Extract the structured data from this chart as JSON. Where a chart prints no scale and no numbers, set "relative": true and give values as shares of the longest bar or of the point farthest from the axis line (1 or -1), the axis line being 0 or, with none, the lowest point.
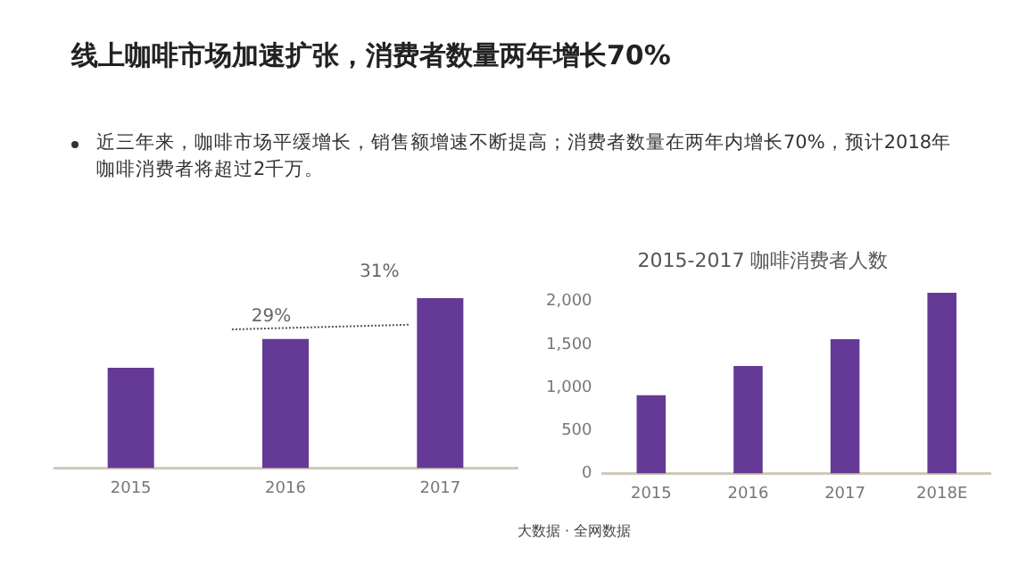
{
  "chart_data": [
    {
      "type": "other",
      "title": "线上咖啡市场加速扩张，消费者数量两年增长70%",
      "annotations": [
        "近三年来，咖啡市场平缓增长，销售额增速不断提高；消费者数量在两年内增长70%，预计2018年咖啡消费者将超过2千万。"
      ]
    },
    {
      "type": "bar",
      "relative": true,
      "categories": [
        "2015",
        "2016",
        "2017"
      ],
      "values": [
        0.59,
        0.76,
        1
      ],
      "color": "#653a96",
      "grid": false,
      "annotations": [
        "29%",
        "31%"
      ]
    },
    {
      "type": "bar",
      "title": "2015-2017 咖啡消费者人数",
      "categories": [
        "2015",
        "2016",
        "2017",
        "2018E"
      ],
      "values": [
        910,
        1250,
        1560,
        2100
      ],
      "color": "#653a96",
      "grid": false,
      "ylim": [
        0,
        2200
      ],
      "yticks": [
        0,
        500,
        {
          "value": 1000,
          "label": "1,000"
        },
        {
          "value": 1500,
          "label": "1,500"
        },
        {
          "value": 2000,
          "label": "2,000"
        }
      ],
      "annotations": [
        "大数据 · 全网数据"
      ]
    }
  ]
}
